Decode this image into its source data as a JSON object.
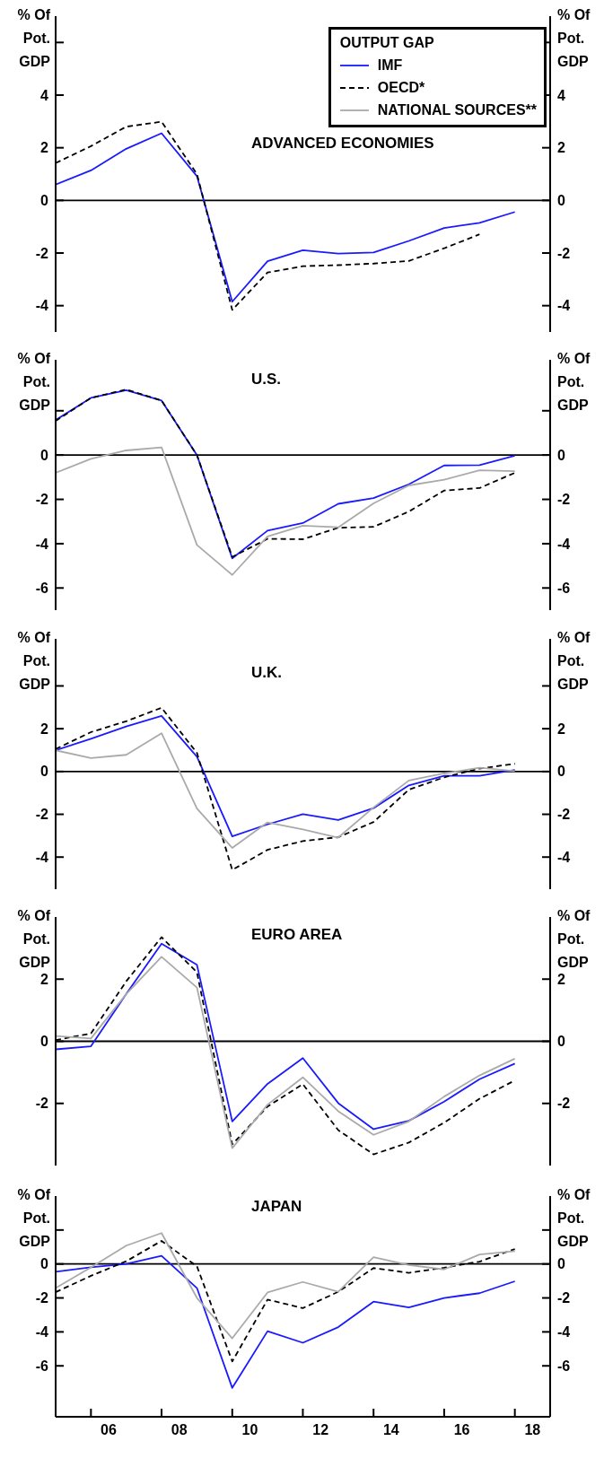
{
  "chart_data": [
    {
      "type": "line",
      "title": "ADVANCED ECONOMIES",
      "ylabel": "% Of Pot. GDP",
      "y2label": "% Of Pot. GDP",
      "legend_title": "OUTPUT GAP",
      "legend": "top right",
      "marker": "none",
      "tick_labels": "y",
      "x": [
        "2005",
        "2006",
        "2007",
        "2008",
        "2009",
        "2010",
        "2011",
        "2012",
        "2013",
        "2014",
        "2015",
        "2016",
        "2017",
        "2018"
      ],
      "xlim": [
        "2005",
        "2019"
      ],
      "ylim": [
        -5,
        7
      ],
      "yticks": [
        -4,
        -2,
        0,
        2,
        4,
        {
          "value": 6,
          "label": null
        }
      ],
      "y2lim": [
        -5,
        7
      ],
      "y2ticks": [
        -4,
        -2,
        0,
        2,
        4,
        {
          "value": 6,
          "label": null
        }
      ],
      "ref_lines": [
        {
          "axis": "y",
          "value": 0,
          "color": "#000000"
        }
      ],
      "series": [
        {
          "name": "IMF",
          "color": "#1a1aff",
          "line_style": "solid",
          "values": [
            0.6,
            1.14,
            1.96,
            2.55,
            0.92,
            -3.85,
            -2.31,
            -1.89,
            -2.02,
            -1.98,
            -1.54,
            -1.05,
            -0.85,
            -0.44
          ]
        },
        {
          "name": "OECD*",
          "color": "#000000",
          "line_style": "dashed",
          "values": [
            1.42,
            2.06,
            2.8,
            2.99,
            1.0,
            -4.16,
            -2.74,
            -2.5,
            -2.46,
            -2.4,
            -2.3,
            -1.82,
            -1.29,
            null
          ]
        },
        {
          "name": "NATIONAL SOURCES**",
          "color": "#aaaaaa",
          "line_style": "solid",
          "values": [
            null,
            null,
            null,
            null,
            null,
            null,
            null,
            null,
            null,
            null,
            null,
            null,
            null,
            null
          ]
        }
      ]
    },
    {
      "type": "line",
      "title": "U.S.",
      "ylabel": "% Of Pot. GDP",
      "y2label": "% Of Pot. GDP",
      "marker": "none",
      "tick_labels": "y",
      "x": [
        "2005",
        "2006",
        "2007",
        "2008",
        "2009",
        "2010",
        "2011",
        "2012",
        "2013",
        "2014",
        "2015",
        "2016",
        "2017",
        "2018"
      ],
      "xlim": [
        "2005",
        "2019"
      ],
      "ylim": [
        -7,
        4.3
      ],
      "yticks": [
        -6,
        -4,
        -2,
        0,
        {
          "value": 2,
          "label": null
        }
      ],
      "y2lim": [
        -7,
        4.3
      ],
      "y2ticks": [
        -6,
        -4,
        -2,
        0,
        {
          "value": 2,
          "label": null
        }
      ],
      "ref_lines": [
        {
          "axis": "y",
          "value": 0,
          "color": "#000000"
        }
      ],
      "series": [
        {
          "color": "#1a1aff",
          "line_style": "solid",
          "values": [
            1.58,
            2.58,
            2.93,
            2.46,
            0,
            -4.66,
            -3.41,
            -3.07,
            -2.2,
            -1.94,
            -1.32,
            -0.47,
            -0.45,
            -0.03
          ]
        },
        {
          "color": "#000000",
          "line_style": "dashed",
          "values": [
            1.54,
            2.58,
            2.96,
            2.46,
            0,
            -4.6,
            -3.78,
            -3.8,
            -3.28,
            -3.24,
            -2.55,
            -1.6,
            -1.49,
            -0.8
          ]
        },
        {
          "color": "#aaaaaa",
          "line_style": "solid",
          "values": [
            -0.8,
            -0.17,
            0.21,
            0.35,
            -4.06,
            -5.41,
            -3.67,
            -3.19,
            -3.26,
            -2.18,
            -1.37,
            -1.11,
            -0.69,
            -0.73
          ]
        }
      ]
    },
    {
      "type": "line",
      "title": "U.K.",
      "ylabel": "% Of Pot. GDP",
      "y2label": "% Of Pot. GDP",
      "marker": "none",
      "tick_labels": "y",
      "x": [
        "2005",
        "2006",
        "2007",
        "2008",
        "2009",
        "2010",
        "2011",
        "2012",
        "2013",
        "2014",
        "2015",
        "2016",
        "2017",
        "2018"
      ],
      "xlim": [
        "2005",
        "2019"
      ],
      "ylim": [
        -5.5,
        6.2
      ],
      "yticks": [
        -4,
        -2,
        0,
        2,
        {
          "value": 4,
          "label": null
        }
      ],
      "y2lim": [
        -5.5,
        6.2
      ],
      "y2ticks": [
        -4,
        -2,
        0,
        2,
        {
          "value": 4,
          "label": null
        }
      ],
      "ref_lines": [
        {
          "axis": "y",
          "value": 0,
          "color": "#000000"
        }
      ],
      "series": [
        {
          "color": "#1a1aff",
          "line_style": "solid",
          "values": [
            0.99,
            1.53,
            2.11,
            2.6,
            0.69,
            -3.03,
            -2.47,
            -1.99,
            -2.27,
            -1.71,
            -0.65,
            -0.2,
            -0.2,
            0.07
          ]
        },
        {
          "color": "#000000",
          "line_style": "dashed",
          "values": [
            1.05,
            1.84,
            2.35,
            2.98,
            0.87,
            -4.6,
            -3.66,
            -3.25,
            -3.07,
            -2.36,
            -0.85,
            -0.27,
            0.14,
            0.36
          ]
        },
        {
          "color": "#aaaaaa",
          "line_style": "solid",
          "values": [
            0.99,
            0.63,
            0.78,
            1.79,
            -1.73,
            -3.57,
            -2.38,
            -2.71,
            -3.09,
            -1.68,
            -0.42,
            -0.09,
            0.18,
            0.02
          ]
        }
      ]
    },
    {
      "type": "line",
      "title": "EURO AREA",
      "ylabel": "% Of Pot. GDP",
      "y2label": "% Of Pot. GDP",
      "marker": "none",
      "tick_labels": "y",
      "x": [
        "2005",
        "2006",
        "2007",
        "2008",
        "2009",
        "2010",
        "2011",
        "2012",
        "2013",
        "2014",
        "2015",
        "2016",
        "2017",
        "2018"
      ],
      "xlim": [
        "2005",
        "2019"
      ],
      "ylim": [
        -4,
        4
      ],
      "yticks": [
        -2,
        0,
        2
      ],
      "y2lim": [
        -4,
        4
      ],
      "y2ticks": [
        -2,
        0,
        2
      ],
      "ref_lines": [
        {
          "axis": "y",
          "value": 0,
          "color": "#000000"
        }
      ],
      "series": [
        {
          "color": "#1a1aff",
          "line_style": "solid",
          "values": [
            -0.26,
            -0.16,
            1.52,
            3.14,
            2.46,
            -2.58,
            -1.37,
            -0.54,
            -1.99,
            -2.83,
            -2.56,
            -1.94,
            -1.22,
            -0.72
          ]
        },
        {
          "color": "#000000",
          "line_style": "dashed",
          "values": [
            0.04,
            0.25,
            1.93,
            3.35,
            2.22,
            -3.32,
            -2.1,
            -1.38,
            -2.86,
            -3.64,
            -3.26,
            -2.62,
            -1.85,
            -1.26
          ]
        },
        {
          "color": "#aaaaaa",
          "line_style": "solid",
          "values": [
            0.17,
            0.09,
            1.52,
            2.72,
            1.73,
            -3.44,
            -2.04,
            -1.16,
            -2.25,
            -3.01,
            -2.58,
            -1.78,
            -1.1,
            -0.56
          ]
        }
      ]
    },
    {
      "type": "line",
      "title": "JAPAN",
      "ylabel": "% Of Pot. GDP",
      "y2label": "% Of Pot. GDP",
      "marker": "none",
      "x": [
        "2005",
        "2006",
        "2007",
        "2008",
        "2009",
        "2010",
        "2011",
        "2012",
        "2013",
        "2014",
        "2015",
        "2016",
        "2017",
        "2018"
      ],
      "xlim": [
        "2005",
        "2019"
      ],
      "xticks": [
        {
          "value": "2006",
          "label": null
        },
        {
          "value": "2006-07-02",
          "label": "06"
        },
        {
          "value": "2008",
          "label": null
        },
        {
          "value": "2008-07-02",
          "label": "08"
        },
        {
          "value": "2010",
          "label": null
        },
        {
          "value": "2010-07-02",
          "label": "10"
        },
        {
          "value": "2012",
          "label": null
        },
        {
          "value": "2012-07-02",
          "label": "12"
        },
        {
          "value": "2014",
          "label": null
        },
        {
          "value": "2014-07-02",
          "label": "14"
        },
        {
          "value": "2016",
          "label": null
        },
        {
          "value": "2016-07-02",
          "label": "16"
        },
        {
          "value": "2018",
          "label": null
        },
        {
          "value": "2018-07-02",
          "label": "18"
        }
      ],
      "ylim": [
        -9,
        4
      ],
      "yticks": [
        -6,
        -4,
        -2,
        0,
        {
          "value": 2,
          "label": null
        }
      ],
      "y2lim": [
        -9,
        4
      ],
      "y2ticks": [
        -6,
        -4,
        -2,
        0,
        {
          "value": 2,
          "label": null
        }
      ],
      "ref_lines": [
        {
          "axis": "y",
          "value": 0,
          "color": "#000000"
        }
      ],
      "series": [
        {
          "color": "#1a1aff",
          "line_style": "solid",
          "values": [
            -0.46,
            -0.2,
            0,
            0.48,
            -1.42,
            -7.3,
            -3.96,
            -4.64,
            -3.72,
            -2.22,
            -2.56,
            -2.0,
            -1.72,
            -1.02
          ]
        },
        {
          "color": "#000000",
          "line_style": "dashed",
          "values": [
            -1.66,
            -0.7,
            0.16,
            1.36,
            -0.14,
            -5.74,
            -2.1,
            -2.6,
            -1.64,
            -0.24,
            -0.52,
            -0.22,
            0.14,
            0.88
          ]
        },
        {
          "color": "#aaaaaa",
          "line_style": "solid",
          "values": [
            -1.42,
            -0.2,
            1.08,
            1.82,
            -2.0,
            -4.38,
            -1.68,
            -1.06,
            -1.64,
            0.4,
            -0.06,
            -0.32,
            0.56,
            0.76
          ]
        }
      ]
    }
  ]
}
